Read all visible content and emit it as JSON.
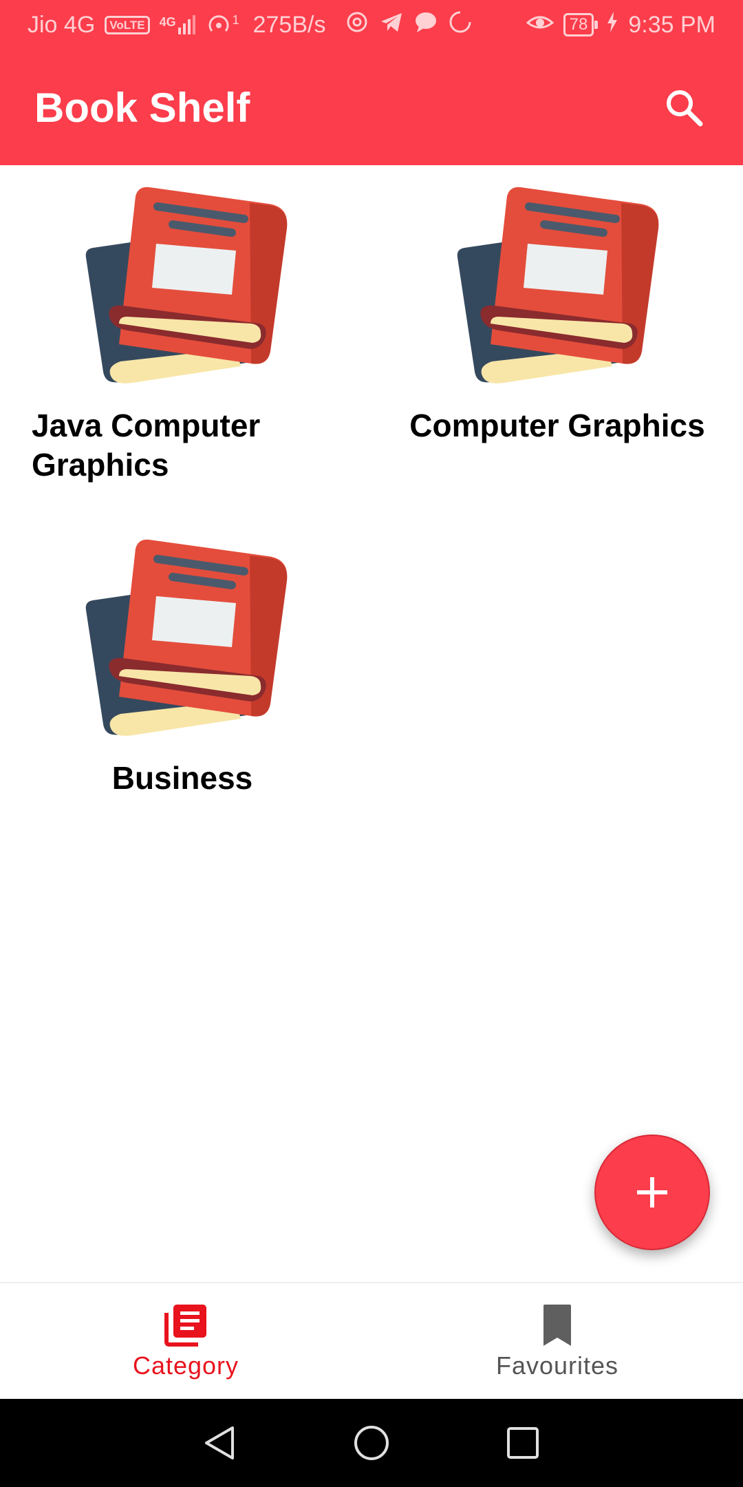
{
  "status_bar": {
    "carrier": "Jio 4G",
    "volte": "VoLTE",
    "network_type": "4G",
    "hotspot_count": "1",
    "speed": "275B/s",
    "battery": "78",
    "time": "9:35 PM"
  },
  "app_bar": {
    "title": "Book Shelf",
    "search_icon": "search-icon"
  },
  "categories": [
    {
      "title": "Java Computer Graphics",
      "icon": "book-stack-icon"
    },
    {
      "title": "Computer Graphics",
      "icon": "book-stack-icon"
    },
    {
      "title": "Business",
      "icon": "book-stack-icon"
    }
  ],
  "fab": {
    "icon": "plus-icon"
  },
  "bottom_nav": {
    "items": [
      {
        "label": "Category",
        "icon": "category-icon",
        "active": true
      },
      {
        "label": "Favourites",
        "icon": "bookmark-icon",
        "active": false
      }
    ]
  },
  "colors": {
    "primary": "#fc3d4b",
    "active_nav": "#e8131d",
    "inactive_nav": "#555555"
  }
}
